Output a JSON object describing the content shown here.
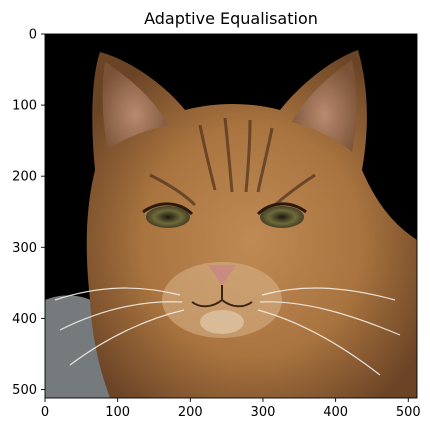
{
  "chart_data": {
    "type": "image",
    "title": "Adaptive Equalisation",
    "xlabel": "",
    "ylabel": "",
    "xlim": [
      0,
      512
    ],
    "ylim": [
      512,
      0
    ],
    "x_ticks": [
      0,
      100,
      200,
      300,
      400,
      500
    ],
    "y_ticks": [
      0,
      100,
      200,
      300,
      400,
      500
    ],
    "grid": false,
    "image_content": "tabby cat face portrait on black background",
    "colors": {
      "background": "#000000",
      "fur_base": "#a9743f",
      "fur_dark": "#5a3a1f",
      "fur_light": "#d8b48a",
      "nose": "#c98a80",
      "eye": "#6f6a3a"
    }
  }
}
